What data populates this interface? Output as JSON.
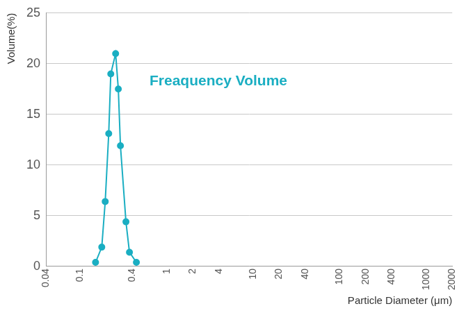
{
  "chart_data": {
    "type": "line",
    "x_label": "Particle Diameter (μm)",
    "y_label": "Volume(%)",
    "series": [
      {
        "name": "Freaquency Volume",
        "color": "#1aaec2",
        "marker": "circle",
        "line_style": "solid",
        "x": [
          0.15,
          0.177,
          0.194,
          0.213,
          0.225,
          0.256,
          0.275,
          0.291,
          0.337,
          0.37,
          0.445
        ],
        "values": [
          0.4,
          1.9,
          6.4,
          13.1,
          19,
          21,
          17.5,
          11.9,
          4.4,
          1.4,
          0.4
        ]
      }
    ],
    "log": "x",
    "xlim": [
      0.04,
      2000
    ],
    "xticks": [
      0.04,
      0.1,
      0.4,
      1,
      2,
      4,
      10,
      20,
      40,
      100,
      200,
      400,
      1000,
      2000
    ],
    "ylim": [
      0,
      25
    ],
    "yticks": [
      0,
      5,
      10,
      15,
      20,
      25
    ],
    "grid": "y"
  }
}
